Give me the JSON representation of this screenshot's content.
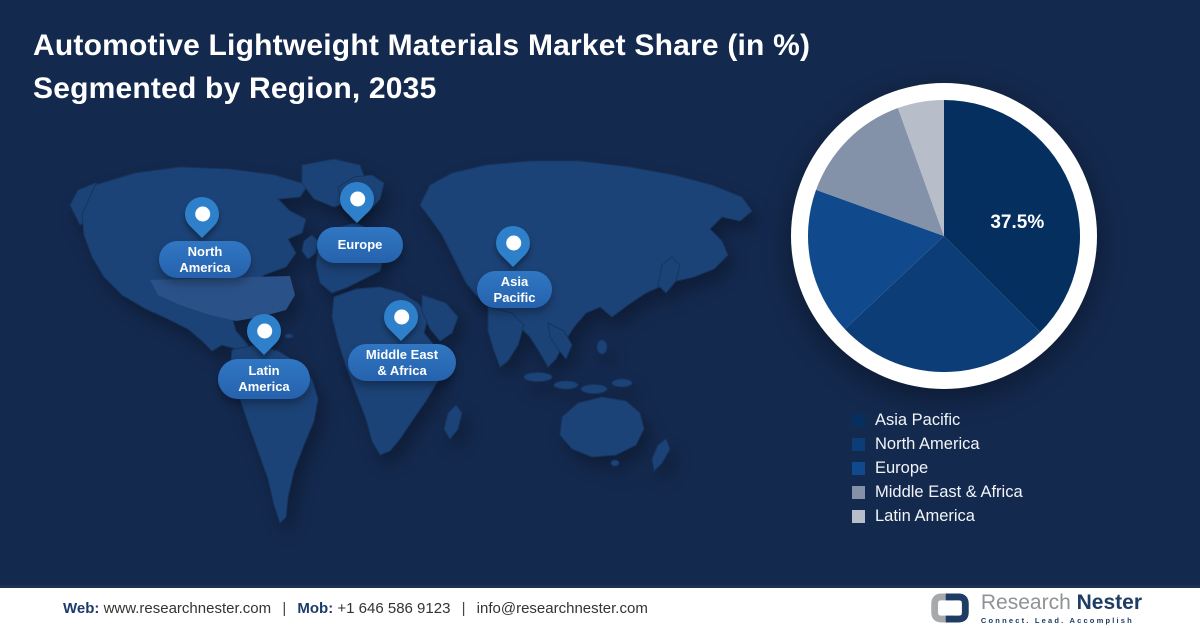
{
  "header": {
    "title_line1": "Automotive Lightweight Materials Market Share (in %)",
    "title_line2": "Segmented by Region, 2035"
  },
  "map": {
    "pins": [
      {
        "id": "north-america",
        "label": "North\nAmerica"
      },
      {
        "id": "europe",
        "label": "Europe"
      },
      {
        "id": "asia-pacific",
        "label": "Asia\nPacific"
      },
      {
        "id": "middle-east-africa",
        "label": "Middle East\n& Africa"
      },
      {
        "id": "latin-america",
        "label": "Latin\nAmerica"
      }
    ]
  },
  "chart_data": {
    "type": "pie",
    "title": "Automotive Lightweight Materials Market Share (in %) Segmented by Region, 2035",
    "unit": "%",
    "start_angle_deg": 0,
    "direction": "clockwise",
    "legend_position": "bottom-right",
    "ring_color": "#ffffff",
    "series": [
      {
        "name": "Asia Pacific",
        "value": 37.5,
        "color": "#052f5f",
        "label": "37.5%"
      },
      {
        "name": "North America",
        "value": 25.5,
        "color": "#0c3d76"
      },
      {
        "name": "Europe",
        "value": 17.5,
        "color": "#114a8c"
      },
      {
        "name": "Middle East & Africa",
        "value": 14.0,
        "color": "#8391a9"
      },
      {
        "name": "Latin America",
        "value": 5.5,
        "color": "#b7bdc9"
      }
    ]
  },
  "footer": {
    "web_label": "Web:",
    "web_value": "www.researchnester.com",
    "separator": "|",
    "mob_label": "Mob:",
    "mob_value": "+1 646 586 9123",
    "email": "info@researchnester.com",
    "logo": {
      "name_part1": "Research",
      "name_part2": "Nester",
      "tagline": "Connect. Lead. Accomplish"
    }
  }
}
